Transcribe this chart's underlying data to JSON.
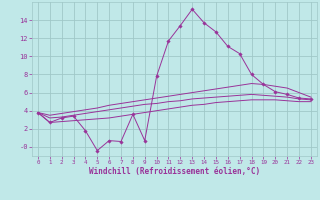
{
  "xlabel": "Windchill (Refroidissement éolien,°C)",
  "background_color": "#c0e8e8",
  "grid_color": "#a0c8c8",
  "line_color": "#993399",
  "x": [
    0,
    1,
    2,
    3,
    4,
    5,
    6,
    7,
    8,
    9,
    10,
    11,
    12,
    13,
    14,
    15,
    16,
    17,
    18,
    19,
    20,
    21,
    22,
    23
  ],
  "y_main": [
    3.8,
    2.7,
    3.2,
    3.4,
    1.8,
    -0.4,
    0.7,
    0.6,
    3.6,
    0.7,
    7.8,
    11.7,
    13.4,
    15.2,
    13.7,
    12.7,
    11.1,
    10.3,
    8.0,
    6.9,
    6.1,
    5.8,
    5.4,
    5.3
  ],
  "y_smooth1": [
    3.8,
    3.5,
    3.7,
    3.9,
    4.1,
    4.3,
    4.6,
    4.8,
    5.0,
    5.2,
    5.4,
    5.6,
    5.8,
    6.0,
    6.2,
    6.4,
    6.6,
    6.8,
    7.0,
    6.9,
    6.7,
    6.5,
    6.0,
    5.5
  ],
  "y_smooth2": [
    3.8,
    3.2,
    3.3,
    3.5,
    3.7,
    3.9,
    4.1,
    4.3,
    4.5,
    4.7,
    4.8,
    5.0,
    5.1,
    5.3,
    5.4,
    5.5,
    5.6,
    5.7,
    5.8,
    5.7,
    5.6,
    5.5,
    5.3,
    5.2
  ],
  "y_smooth3": [
    3.8,
    2.7,
    2.8,
    2.9,
    3.0,
    3.1,
    3.2,
    3.4,
    3.6,
    3.8,
    4.0,
    4.2,
    4.4,
    4.6,
    4.7,
    4.9,
    5.0,
    5.1,
    5.2,
    5.2,
    5.2,
    5.1,
    5.0,
    5.0
  ],
  "ylim": [
    -1.0,
    16.0
  ],
  "ytick_vals": [
    0,
    2,
    4,
    6,
    8,
    10,
    12,
    14
  ],
  "ytick_labels": [
    "-0",
    "2",
    "4",
    "6",
    "8",
    "10",
    "12",
    "14"
  ]
}
